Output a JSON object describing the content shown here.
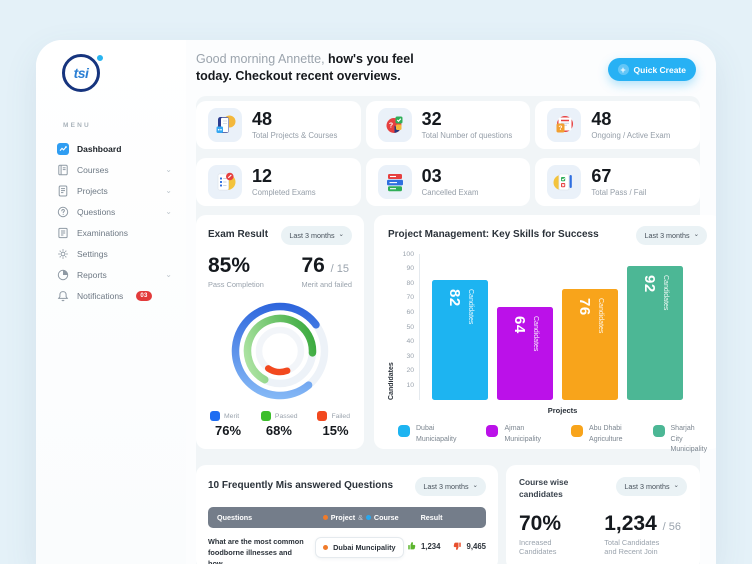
{
  "app": {
    "logo_text": "tsi"
  },
  "icons": {
    "chevron_down": "⌄",
    "plus": "+"
  },
  "sidebar": {
    "menu_label": "MENU",
    "items": [
      {
        "label": "Dashboard"
      },
      {
        "label": "Courses"
      },
      {
        "label": "Projects"
      },
      {
        "label": "Questions"
      },
      {
        "label": "Examinations"
      },
      {
        "label": "Settings"
      },
      {
        "label": "Reports"
      },
      {
        "label": "Notifications",
        "badge": "03"
      }
    ]
  },
  "header": {
    "greeting_muted": "Good morning Annette,",
    "greeting_bold": "how's you feel",
    "greeting_line2": "today. Checkout recent overviews.",
    "quick_create_label": "Quick Create"
  },
  "stats": [
    {
      "value": "48",
      "label": "Total Projects & Courses"
    },
    {
      "value": "32",
      "label": "Total Number of questions"
    },
    {
      "value": "48",
      "label": "Ongoing / Active Exam"
    },
    {
      "value": "12",
      "label": "Completed Exams"
    },
    {
      "value": "03",
      "label": "Cancelled Exam"
    },
    {
      "value": "67",
      "label": "Total Pass / Fail"
    }
  ],
  "exam_result": {
    "title": "Exam Result",
    "filter_label": "Last 3 months",
    "pass_value": "85%",
    "pass_label": "Pass Completion",
    "merit_value": "76",
    "merit_suffix": "/ 15",
    "merit_label": "Merit and failed"
  },
  "project_chart": {
    "title": "Project Management: Key Skills for Success",
    "filter_label": "Last 3 months"
  },
  "questions_card": {
    "title": "10 Frequently Mis answered Questions",
    "filter_label": "Last 3 months",
    "columns": {
      "questions": "Questions",
      "project": "Project",
      "amp": "&",
      "course": "Course",
      "result": "Result"
    },
    "row": {
      "question_line1": "What are the most common",
      "question_line2": "foodborne illnesses and how",
      "select_value": "Dubai Muncipality",
      "up_count": "1,234",
      "down_count": "9,465"
    }
  },
  "course_wise": {
    "title_line1": "Course wise",
    "title_line2": "candidates",
    "filter_label": "Last 3 months",
    "increased_value": "70%",
    "increased_label_line1": "Increased",
    "increased_label_line2": "Candidates",
    "total_value": "1,234",
    "total_suffix": "/ 56",
    "total_label_line1": "Total Candidates",
    "total_label_line2": "and Recent Join"
  },
  "chart_data": [
    {
      "id": "exam-result-rings",
      "type": "donut",
      "series": [
        {
          "name": "Merit",
          "value": 76,
          "color": "#1e6df2"
        },
        {
          "name": "Passed",
          "value": 68,
          "color": "#3cbe2b"
        },
        {
          "name": "Failed",
          "value": 15,
          "color": "#f2491f"
        }
      ],
      "value_suffix": "%"
    },
    {
      "id": "project-skills",
      "type": "bar",
      "title": "Project Management: Key Skills for Success",
      "categories": [
        "Dubai Municiapality",
        "Ajman Municipality",
        "Abu Dhabi Agriculture",
        "Sharjah City Municipality"
      ],
      "values": [
        82,
        64,
        76,
        92
      ],
      "colors": [
        "#1db4f1",
        "#bb11e9",
        "#f8a41b",
        "#4cb795"
      ],
      "bar_value_suffix": "Candidates",
      "xlabel": "Projects",
      "ylabel": "Candidates",
      "ylim": [
        0,
        100
      ],
      "yticks": [
        10,
        20,
        30,
        40,
        50,
        60,
        70,
        80,
        90,
        100
      ],
      "grid": false,
      "legend_position": "bottom"
    }
  ],
  "colors": {
    "accent_blue": "#27b1f4",
    "badge_red": "#e23b3b",
    "table_header_gray": "#747d8a",
    "project_dot_orange": "#f07b2a",
    "course_dot_blue": "#29a8ef",
    "thumb_up_green": "#5cb52e",
    "thumb_down_red": "#e8502f"
  }
}
